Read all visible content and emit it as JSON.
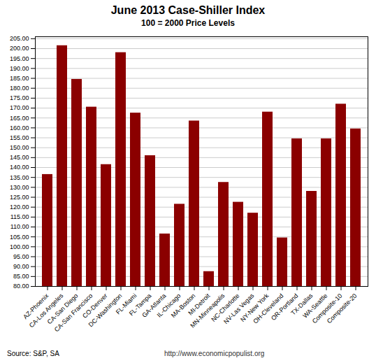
{
  "chart_data": {
    "type": "bar",
    "title": "June 2013 Case-Shiller Index",
    "subtitle": "100 = 2000 Price Levels",
    "categories": [
      "AZ-Phoenix",
      "CA-Los Angeles",
      "CA-San Diego",
      "CA-San Francisco",
      "CO-Denver",
      "DC-Washington",
      "FL-Miami",
      "FL-Tampa",
      "GA-Atlanta",
      "IL-Chicago",
      "MA-Boston",
      "MI-Detroit",
      "MN-Minneapolis",
      "NC-Charlotte",
      "NV-Las Vegas",
      "NY-New York",
      "OH-Cleveland",
      "OR-Portland",
      "TX-Dallas",
      "WA-Seattle",
      "Composite-10",
      "Composite-20"
    ],
    "values": [
      136.5,
      201.5,
      184.5,
      170.5,
      141.5,
      198.0,
      167.5,
      146.0,
      106.5,
      121.5,
      163.5,
      87.5,
      132.5,
      122.5,
      117.0,
      168.0,
      104.5,
      154.5,
      128.0,
      154.5,
      172.0,
      159.5
    ],
    "color": "#8B0000",
    "ylim": [
      80,
      206
    ],
    "yticks": [
      {
        "value": 80,
        "label": "80.00"
      },
      {
        "value": 85,
        "label": "85.00"
      },
      {
        "value": 90,
        "label": "90.00"
      },
      {
        "value": 95,
        "label": "95.00"
      },
      {
        "value": 100,
        "label": "100.00"
      },
      {
        "value": 105,
        "label": "105.00"
      },
      {
        "value": 110,
        "label": "110.00"
      },
      {
        "value": 115,
        "label": "115.00"
      },
      {
        "value": 120,
        "label": "120.00"
      },
      {
        "value": 125,
        "label": "125.00"
      },
      {
        "value": 130,
        "label": "130.00"
      },
      {
        "value": 135,
        "label": "135.00"
      },
      {
        "value": 140,
        "label": "140.00"
      },
      {
        "value": 145,
        "label": "145.00"
      },
      {
        "value": 150,
        "label": "150.00"
      },
      {
        "value": 155,
        "label": "155.00"
      },
      {
        "value": 160,
        "label": "160.00"
      },
      {
        "value": 165,
        "label": "165.00"
      },
      {
        "value": 170,
        "label": "170.00"
      },
      {
        "value": 175,
        "label": "175.00"
      },
      {
        "value": 180,
        "label": "180.00"
      },
      {
        "value": 185,
        "label": "185.00"
      },
      {
        "value": 190,
        "label": "190.00"
      },
      {
        "value": 195,
        "label": "195.00"
      },
      {
        "value": 200,
        "label": "200.00"
      },
      {
        "value": 205,
        "label": "205.00"
      }
    ],
    "grid": true,
    "annotations": [
      "Source: S&P,  SA",
      "http://www.economicpopulist.org"
    ]
  }
}
